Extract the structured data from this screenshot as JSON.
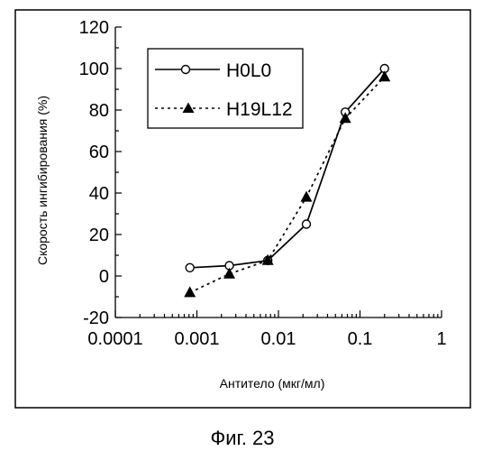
{
  "caption": "Фиг. 23",
  "chart_data": {
    "type": "line",
    "xlabel": "Антитело (мкг/мл)",
    "ylabel": "Скорость ингибирования (%)",
    "x_scale": "log",
    "xlim": [
      0.0001,
      1
    ],
    "ylim": [
      -20,
      120
    ],
    "x_ticks": [
      "0.0001",
      "0.001",
      "0.01",
      "0.1",
      "1"
    ],
    "y_ticks": [
      "120",
      "100",
      "80",
      "60",
      "40",
      "20",
      "0",
      "-20"
    ],
    "grid": false,
    "legend_position": "top-left",
    "series": [
      {
        "name": "H0L0",
        "marker": "open-circle",
        "line_style": "solid",
        "color": "#000000",
        "x": [
          0.00082,
          0.0025,
          0.0074,
          0.022,
          0.066,
          0.2
        ],
        "y": [
          4,
          5,
          7.5,
          25,
          79,
          100
        ]
      },
      {
        "name": "H19L12",
        "marker": "filled-triangle",
        "line_style": "dotted",
        "color": "#000000",
        "x": [
          0.00082,
          0.0025,
          0.0074,
          0.022,
          0.066,
          0.2
        ],
        "y": [
          -8,
          1,
          7.5,
          38,
          76,
          96
        ]
      }
    ]
  }
}
